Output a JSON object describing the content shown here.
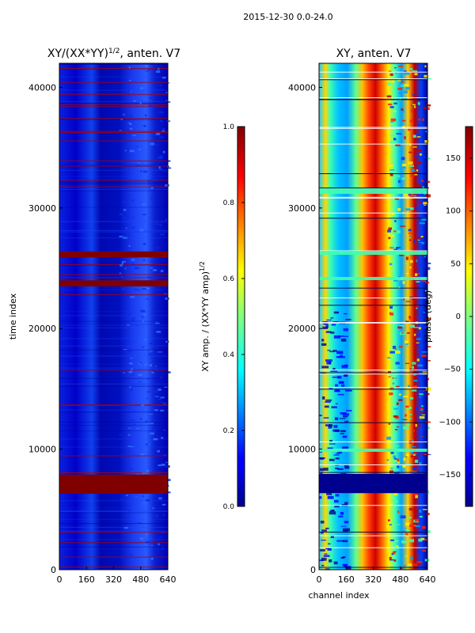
{
  "figure_title": "2015-12-30 0.0-24.0",
  "colors": {
    "deep_blue": "#00008f",
    "blue": "#0000ff",
    "cyan": "#00ffff",
    "yellow": "#ffff00",
    "red": "#ff0000",
    "dark_red": "#800000"
  },
  "chart_data": [
    {
      "type": "heatmap",
      "title": "XY/(XX*YY)",
      "title_superscript": "1/2",
      "title_suffix": ", anten. V7",
      "xlabel": "",
      "ylabel": "time index",
      "xlim": [
        0,
        640
      ],
      "ylim": [
        0,
        42000
      ],
      "xticks": [
        0,
        160,
        320,
        480,
        640
      ],
      "yticks": [
        0,
        10000,
        20000,
        30000,
        40000
      ],
      "ytick_labels": [
        "0",
        "10000",
        "20000",
        "30000",
        "40000"
      ],
      "colormap": "jet",
      "saturated_time_bands": [
        [
          6300,
          7900
        ],
        [
          23500,
          24000
        ],
        [
          25900,
          26400
        ]
      ],
      "colorbar": {
        "label": "XY amp. / (XX*YY amp)",
        "label_superscript": "1/2",
        "range": [
          0.0,
          1.0
        ],
        "ticks": [
          0.0,
          0.2,
          0.4,
          0.6,
          0.8,
          1.0
        ],
        "tick_labels": [
          "0.0",
          "0.2",
          "0.4",
          "0.6",
          "0.8",
          "1.0"
        ]
      }
    },
    {
      "type": "heatmap",
      "title": "XY, anten. V7",
      "xlabel": "channel index",
      "ylabel": "",
      "xlim": [
        0,
        640
      ],
      "ylim": [
        0,
        42000
      ],
      "xticks": [
        0,
        160,
        320,
        480,
        640
      ],
      "yticks": [
        0,
        10000,
        20000,
        30000,
        40000
      ],
      "ytick_labels": [
        "0",
        "10000",
        "20000",
        "30000",
        "40000"
      ],
      "colormap": "jet",
      "colorbar": {
        "label": "phase (deg)",
        "range": [
          -180,
          180
        ],
        "ticks": [
          -150,
          -100,
          -50,
          0,
          50,
          100,
          150
        ],
        "tick_labels": [
          "−150",
          "−100",
          "−50",
          "0",
          "50",
          "100",
          "150"
        ]
      }
    }
  ]
}
